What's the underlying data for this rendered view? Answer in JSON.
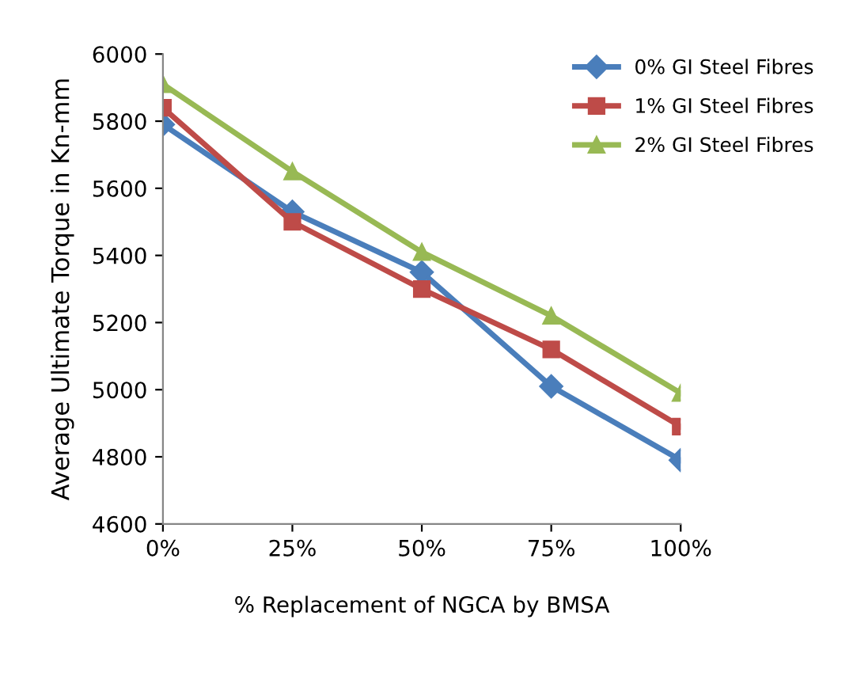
{
  "chart_data": {
    "type": "line",
    "xlabel": "% Replacement of NGCA by BMSA",
    "ylabel": "Average Ultimate Torque in Kn-mm",
    "categories": [
      "0%",
      "25%",
      "50%",
      "75%",
      "100%"
    ],
    "series": [
      {
        "name": "0% GI Steel Fibres",
        "color": "#4a7ebb",
        "marker": "diamond",
        "values": [
          5790,
          5530,
          5350,
          5010,
          4790
        ]
      },
      {
        "name": "1% GI Steel Fibres",
        "color": "#be4b48",
        "marker": "square",
        "values": [
          5840,
          5500,
          5300,
          5120,
          4890
        ]
      },
      {
        "name": "2% GI Steel Fibres",
        "color": "#98b954",
        "marker": "triangle",
        "values": [
          5910,
          5650,
          5410,
          5220,
          4990
        ]
      }
    ],
    "ylim": [
      4600,
      6000
    ],
    "yticks": [
      4600,
      4800,
      5000,
      5200,
      5400,
      5600,
      5800,
      6000
    ],
    "grid": false,
    "legend": "top right"
  }
}
